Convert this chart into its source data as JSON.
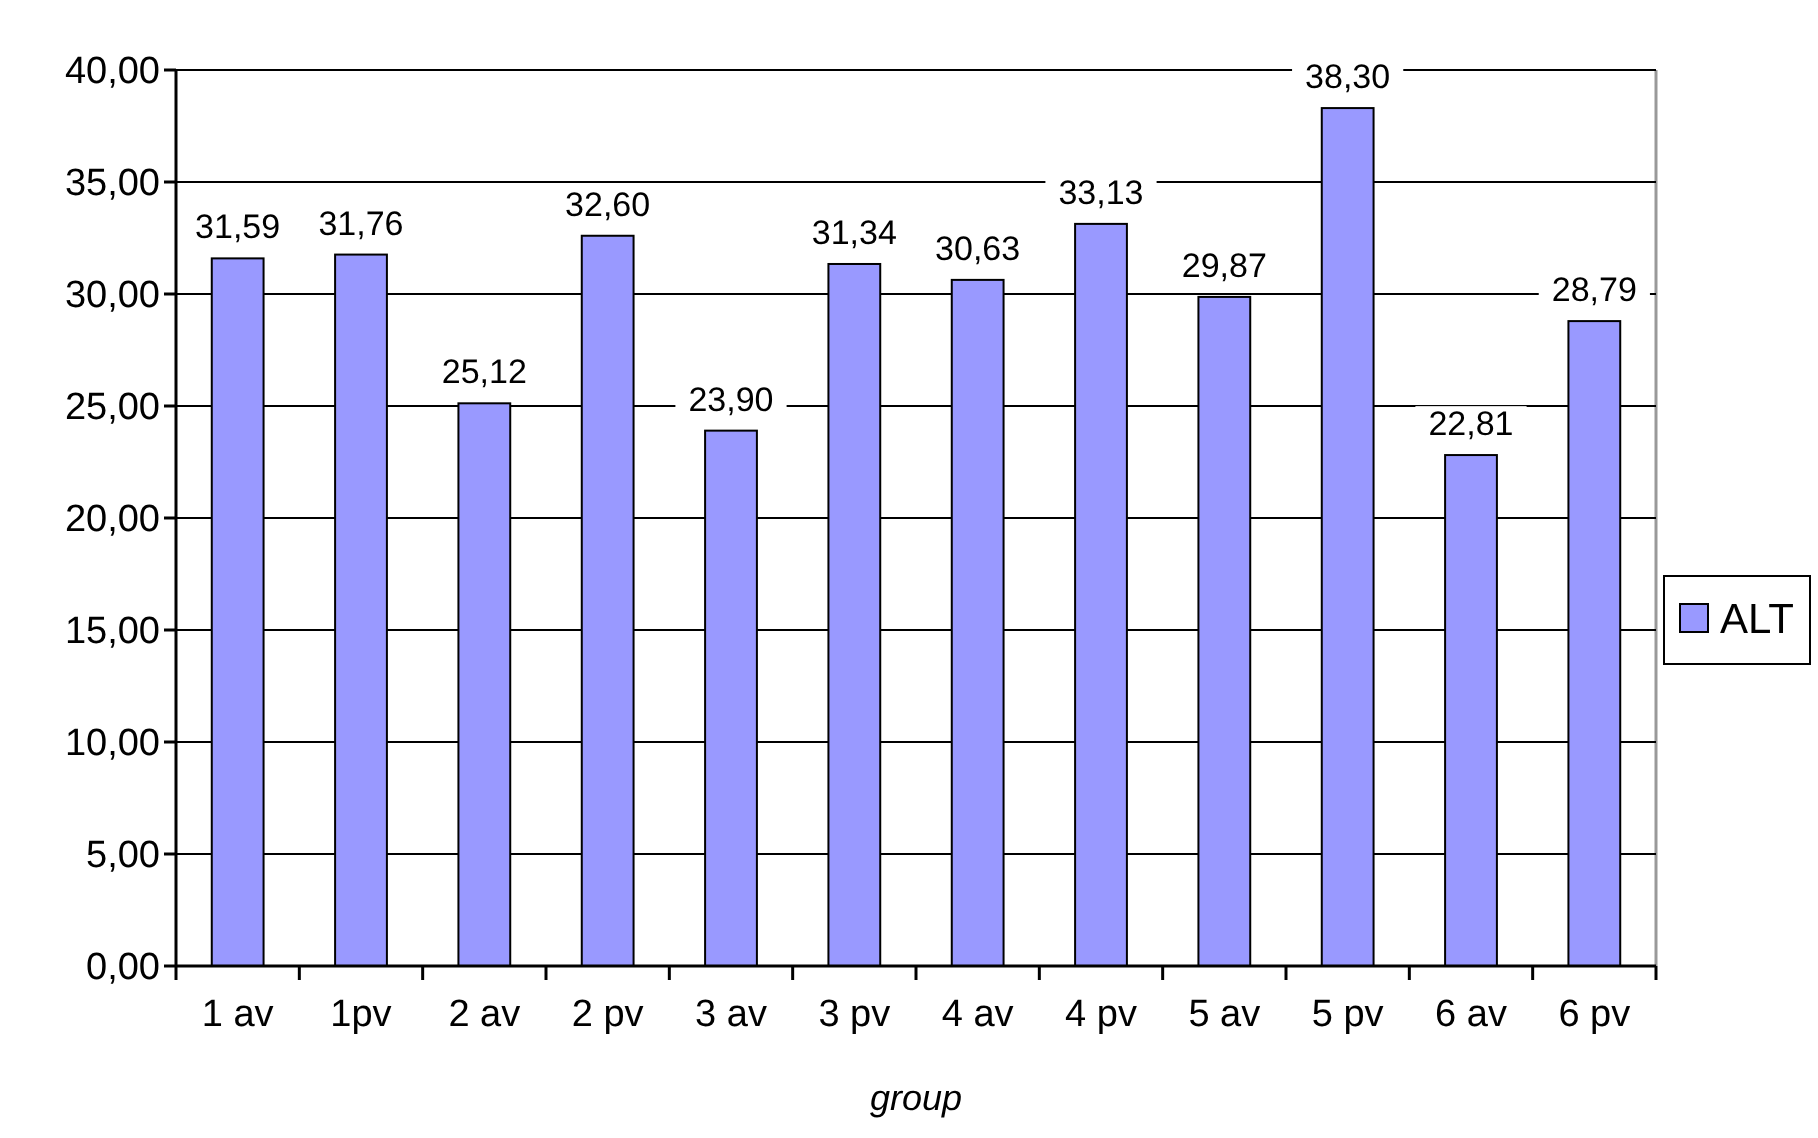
{
  "chart_data": {
    "type": "bar",
    "xlabel": "group",
    "categories": [
      "1 av",
      "1pv",
      "2 av",
      "2 pv",
      "3 av",
      "3 pv",
      "4 av",
      "4 pv",
      "5 av",
      "5 pv",
      "6 av",
      "6 pv"
    ],
    "series": [
      {
        "name": "ALT",
        "color": "#9999ff",
        "values": [
          31.59,
          31.76,
          25.12,
          32.6,
          23.9,
          31.34,
          30.63,
          33.13,
          29.87,
          38.3,
          22.81,
          28.79
        ],
        "value_labels": [
          "31,59",
          "31,76",
          "25,12",
          "32,60",
          "23,90",
          "31,34",
          "30,63",
          "33,13",
          "29,87",
          "38,30",
          "22,81",
          "28,79"
        ]
      }
    ],
    "ylim": [
      0,
      40
    ],
    "yticks": [
      {
        "value": 0,
        "label": "0,00"
      },
      {
        "value": 5,
        "label": "5,00"
      },
      {
        "value": 10,
        "label": "10,00"
      },
      {
        "value": 15,
        "label": "15,00"
      },
      {
        "value": 20,
        "label": "20,00"
      },
      {
        "value": 25,
        "label": "25,00"
      },
      {
        "value": 30,
        "label": "30,00"
      },
      {
        "value": 35,
        "label": "35,00"
      },
      {
        "value": 40,
        "label": "40,00"
      }
    ],
    "grid": "y",
    "legend": "right"
  }
}
